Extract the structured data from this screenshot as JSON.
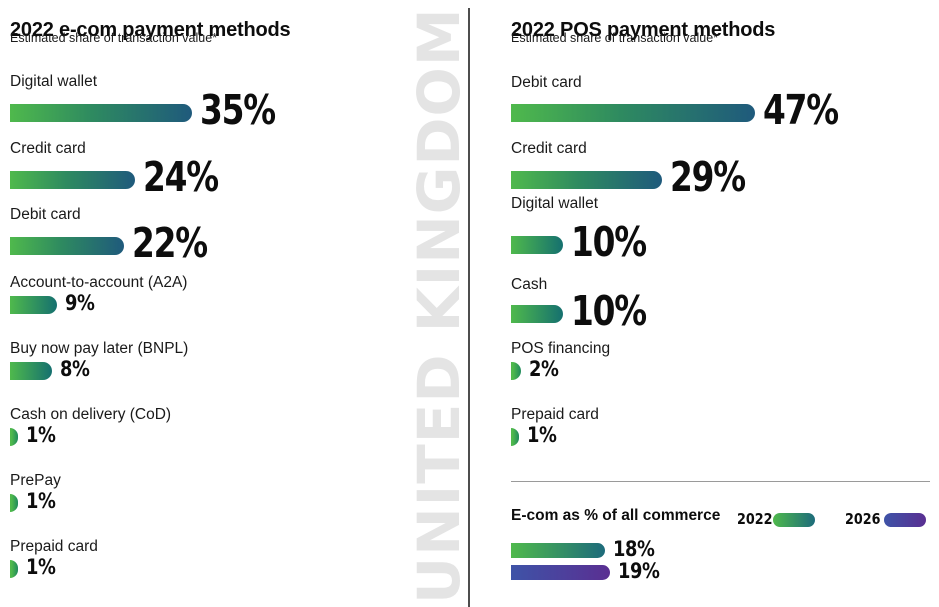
{
  "watermark": "UNITED KINGDOM",
  "ecom_chart": {
    "title": "2022 e-com payment methods",
    "subtitle": "Estimated share of transaction value*",
    "items": [
      {
        "label": "Digital wallet",
        "value": "35%",
        "pct": 35,
        "emphasis": "big"
      },
      {
        "label": "Credit card",
        "value": "24%",
        "pct": 24,
        "emphasis": "big"
      },
      {
        "label": "Debit card",
        "value": "22%",
        "pct": 22,
        "emphasis": "big"
      },
      {
        "label": "Account-to-account (A2A)",
        "value": "9%",
        "pct": 9,
        "emphasis": "small"
      },
      {
        "label": "Buy now pay later (BNPL)",
        "value": "8%",
        "pct": 8,
        "emphasis": "small"
      },
      {
        "label": "Cash on delivery (CoD)",
        "value": "1%",
        "pct": 1,
        "emphasis": "small"
      },
      {
        "label": "PrePay",
        "value": "1%",
        "pct": 1,
        "emphasis": "small"
      },
      {
        "label": "Prepaid card",
        "value": "1%",
        "pct": 1,
        "emphasis": "small"
      }
    ]
  },
  "pos_chart": {
    "title": "2022 POS payment methods",
    "subtitle": "Estimated share of transaction value*",
    "items": [
      {
        "label": "Debit card",
        "value": "47%",
        "pct": 47,
        "emphasis": "big"
      },
      {
        "label": "Credit card",
        "value": "29%",
        "pct": 29,
        "emphasis": "big"
      },
      {
        "label": "Digital wallet",
        "value": "10%",
        "pct": 10,
        "emphasis": "big"
      },
      {
        "label": "Cash",
        "value": "10%",
        "pct": 10,
        "emphasis": "big"
      },
      {
        "label": "POS financing",
        "value": "2%",
        "pct": 2,
        "emphasis": "small"
      },
      {
        "label": "Prepaid card",
        "value": "1%",
        "pct": 1,
        "emphasis": "small"
      }
    ]
  },
  "ecom_share": {
    "title": "E-com as % of all commerce",
    "legend": [
      {
        "label": "2022",
        "swatch": "green"
      },
      {
        "label": "2026",
        "swatch": "purple"
      }
    ],
    "bars": [
      {
        "series": "2022",
        "value": "18%",
        "pct": 18,
        "swatch": "green"
      },
      {
        "series": "2026",
        "value": "19%",
        "pct": 19,
        "swatch": "purple"
      }
    ]
  },
  "colors": {
    "bar_green_start": "#4FB94C",
    "bar_blue_end": "#1F5A7C",
    "bar_teal_end": "#15706F",
    "bar_short_end": "#1F8A5C",
    "bar_purple_start": "#3E53A7",
    "bar_purple_end": "#5A2F92",
    "watermark_gray": "#E4E4E4",
    "divider_gray": "#4D4D4D",
    "rule_gray": "#9A9A9A"
  },
  "chart_data": [
    {
      "type": "bar",
      "orientation": "horizontal",
      "title": "2022 e-com payment methods",
      "subtitle": "Estimated share of transaction value*",
      "region": "United Kingdom",
      "categories": [
        "Digital wallet",
        "Credit card",
        "Debit card",
        "Account-to-account (A2A)",
        "Buy now pay later (BNPL)",
        "Cash on delivery (CoD)",
        "PrePay",
        "Prepaid card"
      ],
      "values": [
        35,
        24,
        22,
        9,
        8,
        1,
        1,
        1
      ],
      "unit": "%",
      "xlim": [
        0,
        50
      ],
      "grid": false,
      "value_labels": "end-of-bar"
    },
    {
      "type": "bar",
      "orientation": "horizontal",
      "title": "2022 POS payment methods",
      "subtitle": "Estimated share of transaction value*",
      "region": "United Kingdom",
      "categories": [
        "Debit card",
        "Credit card",
        "Digital wallet",
        "Cash",
        "POS financing",
        "Prepaid card"
      ],
      "values": [
        47,
        29,
        10,
        10,
        2,
        1
      ],
      "unit": "%",
      "xlim": [
        0,
        50
      ],
      "grid": false,
      "value_labels": "end-of-bar"
    },
    {
      "type": "bar",
      "orientation": "horizontal",
      "title": "E-com as % of all commerce",
      "categories": [
        "2022",
        "2026"
      ],
      "values": [
        18,
        19
      ],
      "unit": "%",
      "legend_position": "right",
      "grid": false,
      "value_labels": "end-of-bar"
    }
  ]
}
